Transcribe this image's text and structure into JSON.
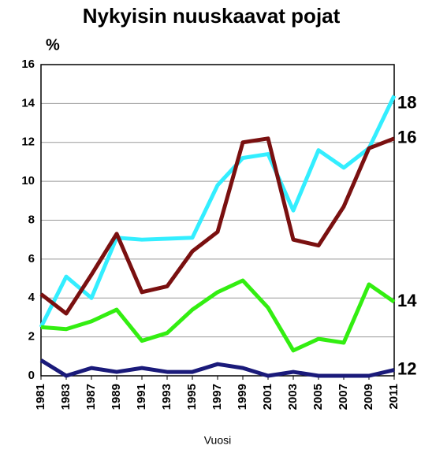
{
  "chart_data": {
    "type": "line",
    "title": "Nykyisin nuuskaavat pojat",
    "y_label": "%",
    "x_label": "Vuosi",
    "categories": [
      "1981",
      "1983",
      "1987",
      "1989",
      "1991",
      "1993",
      "1995",
      "1997",
      "1999",
      "2001",
      "2003",
      "2005",
      "2007",
      "2009",
      "2011"
    ],
    "series": [
      {
        "name": "18",
        "color": "#33eeff",
        "values": [
          2.5,
          5.1,
          4.0,
          7.1,
          7.0,
          7.05,
          7.1,
          9.8,
          11.2,
          11.4,
          8.5,
          11.6,
          10.7,
          11.7,
          14.4
        ]
      },
      {
        "name": "16",
        "color": "#7a1010",
        "values": [
          4.2,
          3.2,
          5.2,
          7.3,
          4.3,
          4.6,
          6.4,
          7.4,
          12.0,
          12.2,
          7.0,
          6.7,
          8.7,
          11.7,
          12.2
        ]
      },
      {
        "name": "14",
        "color": "#33ee11",
        "values": [
          2.5,
          2.4,
          2.8,
          3.4,
          1.8,
          2.2,
          3.4,
          4.3,
          4.9,
          3.5,
          1.3,
          1.9,
          1.7,
          4.7,
          3.8
        ]
      },
      {
        "name": "12",
        "color": "#1a1a7a",
        "values": [
          0.8,
          0.0,
          0.4,
          0.2,
          0.4,
          0.2,
          0.2,
          0.6,
          0.4,
          0.0,
          0.2,
          0.0,
          0.0,
          0.0,
          0.3
        ]
      }
    ],
    "ylim": [
      0,
      16
    ],
    "yticks": [
      0,
      2,
      4,
      6,
      8,
      10,
      12,
      14,
      16
    ],
    "grid": true
  }
}
